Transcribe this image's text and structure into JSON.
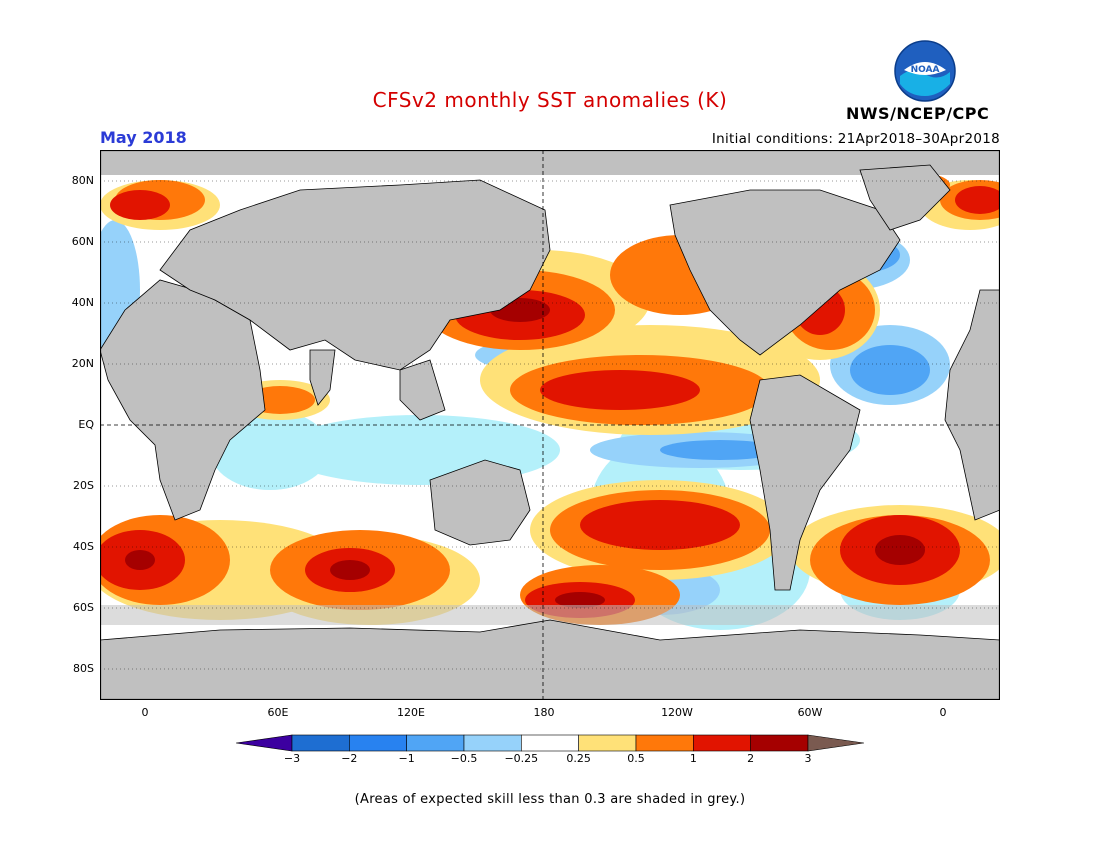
{
  "title": "CFSv2 monthly SST anomalies (K)",
  "month": "May 2018",
  "initial_conditions": "Initial conditions: 21Apr2018–30Apr2018",
  "agency": "NWS/NCEP/CPC",
  "logo_text": "NOAA",
  "map": {
    "latitude_labels": [
      "80N",
      "60N",
      "40N",
      "20N",
      "EQ",
      "20S",
      "40S",
      "60S",
      "80S"
    ],
    "longitude_labels": [
      "0",
      "60E",
      "120E",
      "180",
      "120W",
      "60W",
      "0"
    ],
    "lat_range": [
      -90,
      90
    ],
    "lon_range": [
      -20,
      380
    ],
    "colors": {
      "ocean_neutral": "#ffffff",
      "land": "#c0c0c0",
      "low_skill_grey": "#c0c0c0",
      "cool_weak": "#b4f0fa",
      "cool_mod": "#96d2fa",
      "cool_strong": "#50a5f5",
      "cool_very": "#1e6ed2",
      "warm_weak": "#ffe178",
      "warm_mod": "#ff780a",
      "warm_strong": "#e11400",
      "warm_very": "#a50000"
    }
  },
  "colorbar": {
    "tick_labels": [
      "−3",
      "−2",
      "−1",
      "−0.5",
      "−0.25",
      "0.25",
      "0.5",
      "1",
      "2",
      "3"
    ],
    "colors": [
      "#3c00a0",
      "#1e6ed2",
      "#2882f0",
      "#50a5f5",
      "#96d2fa",
      "#ffffff",
      "#ffe178",
      "#ff780a",
      "#e11400",
      "#a50000",
      "#7a5a50"
    ]
  },
  "caption": "(Areas of expected skill less than 0.3 are shaded in grey.)"
}
